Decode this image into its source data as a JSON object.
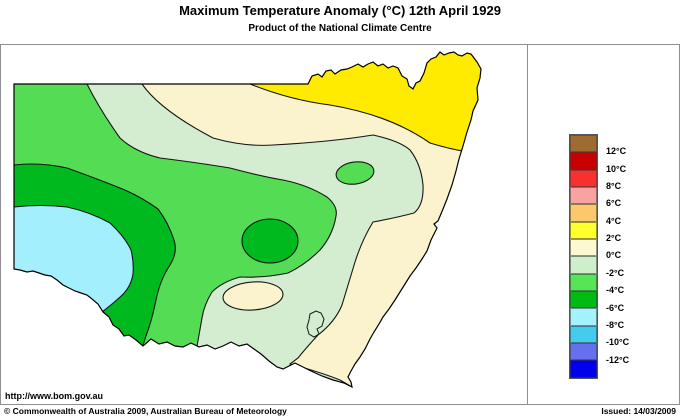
{
  "title": "Maximum Temperature Anomaly (°C)  12th April 1929",
  "subtitle": "Product of the National Climate Centre",
  "footer": {
    "url": "http://www.bom.gov.au",
    "copyright": "© Commonwealth of Australia 2009, Australian Bureau of Meteorology",
    "issued": "Issued: 14/03/2009"
  },
  "legend": {
    "unit": "°C",
    "colors": [
      "#A06B32",
      "#C80000",
      "#F83030",
      "#F9A2A2",
      "#FBC96C",
      "#FFFF2E",
      "#FCF8D2",
      "#CFEECB",
      "#55E555",
      "#00BB11",
      "#A5F2FF",
      "#44CCEE",
      "#6670EE",
      "#0000EE"
    ],
    "labels": [
      "12°C",
      "10°C",
      "8°C",
      "6°C",
      "4°C",
      "2°C",
      "0°C",
      "-2°C",
      "-4°C",
      "-6°C",
      "-8°C",
      "-10°C",
      "-12°C"
    ]
  },
  "map": {
    "colors": {
      "yellow": "#FFEB00",
      "cream": "#FBF3CD",
      "pale_green": "#D4EDD0",
      "light_green": "#55DC55",
      "green": "#00B91E",
      "cyan": "#A3EFFE",
      "contour": "#151515",
      "border": "#000000"
    },
    "bands_shown": [
      "2 to 4",
      "0 to 2",
      "-2 to 0",
      "-4 to -2",
      "-6 to -4",
      "-8 to -6"
    ]
  }
}
